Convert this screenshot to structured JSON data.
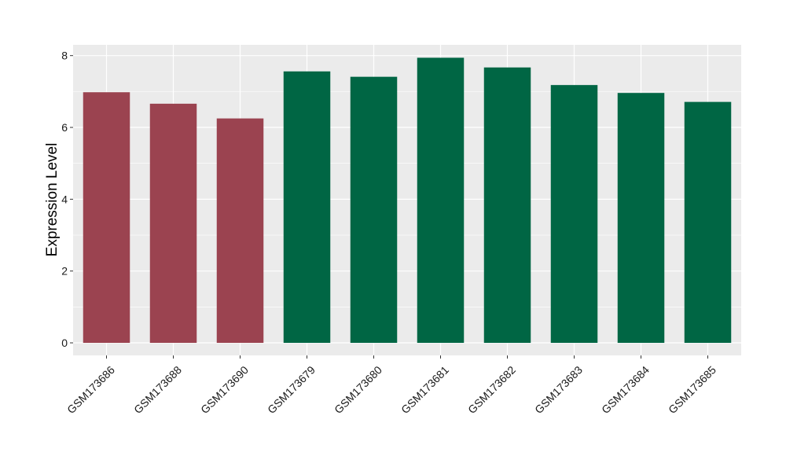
{
  "chart_data": {
    "type": "bar",
    "title": "",
    "xlabel": "",
    "ylabel": "Expression Level",
    "ylim": [
      -0.35,
      8.3
    ],
    "yticks": [
      0,
      2,
      4,
      6,
      8
    ],
    "ytick_labels": [
      "0",
      "2",
      "4",
      "6",
      "8"
    ],
    "grid": true,
    "legend": "none",
    "categories": [
      "GSM173686",
      "GSM173688",
      "GSM173690",
      "GSM173679",
      "GSM173680",
      "GSM173681",
      "GSM173682",
      "GSM173683",
      "GSM173684",
      "GSM173685"
    ],
    "values": [
      6.98,
      6.66,
      6.25,
      7.56,
      7.41,
      7.94,
      7.67,
      7.18,
      6.96,
      6.71
    ],
    "bar_colors": [
      "#9b4350",
      "#9b4350",
      "#9b4350",
      "#006644",
      "#006644",
      "#006644",
      "#006644",
      "#006644",
      "#006644",
      "#006644"
    ],
    "colors": {
      "panel": "#ebebeb",
      "grid": "#ffffff"
    }
  }
}
